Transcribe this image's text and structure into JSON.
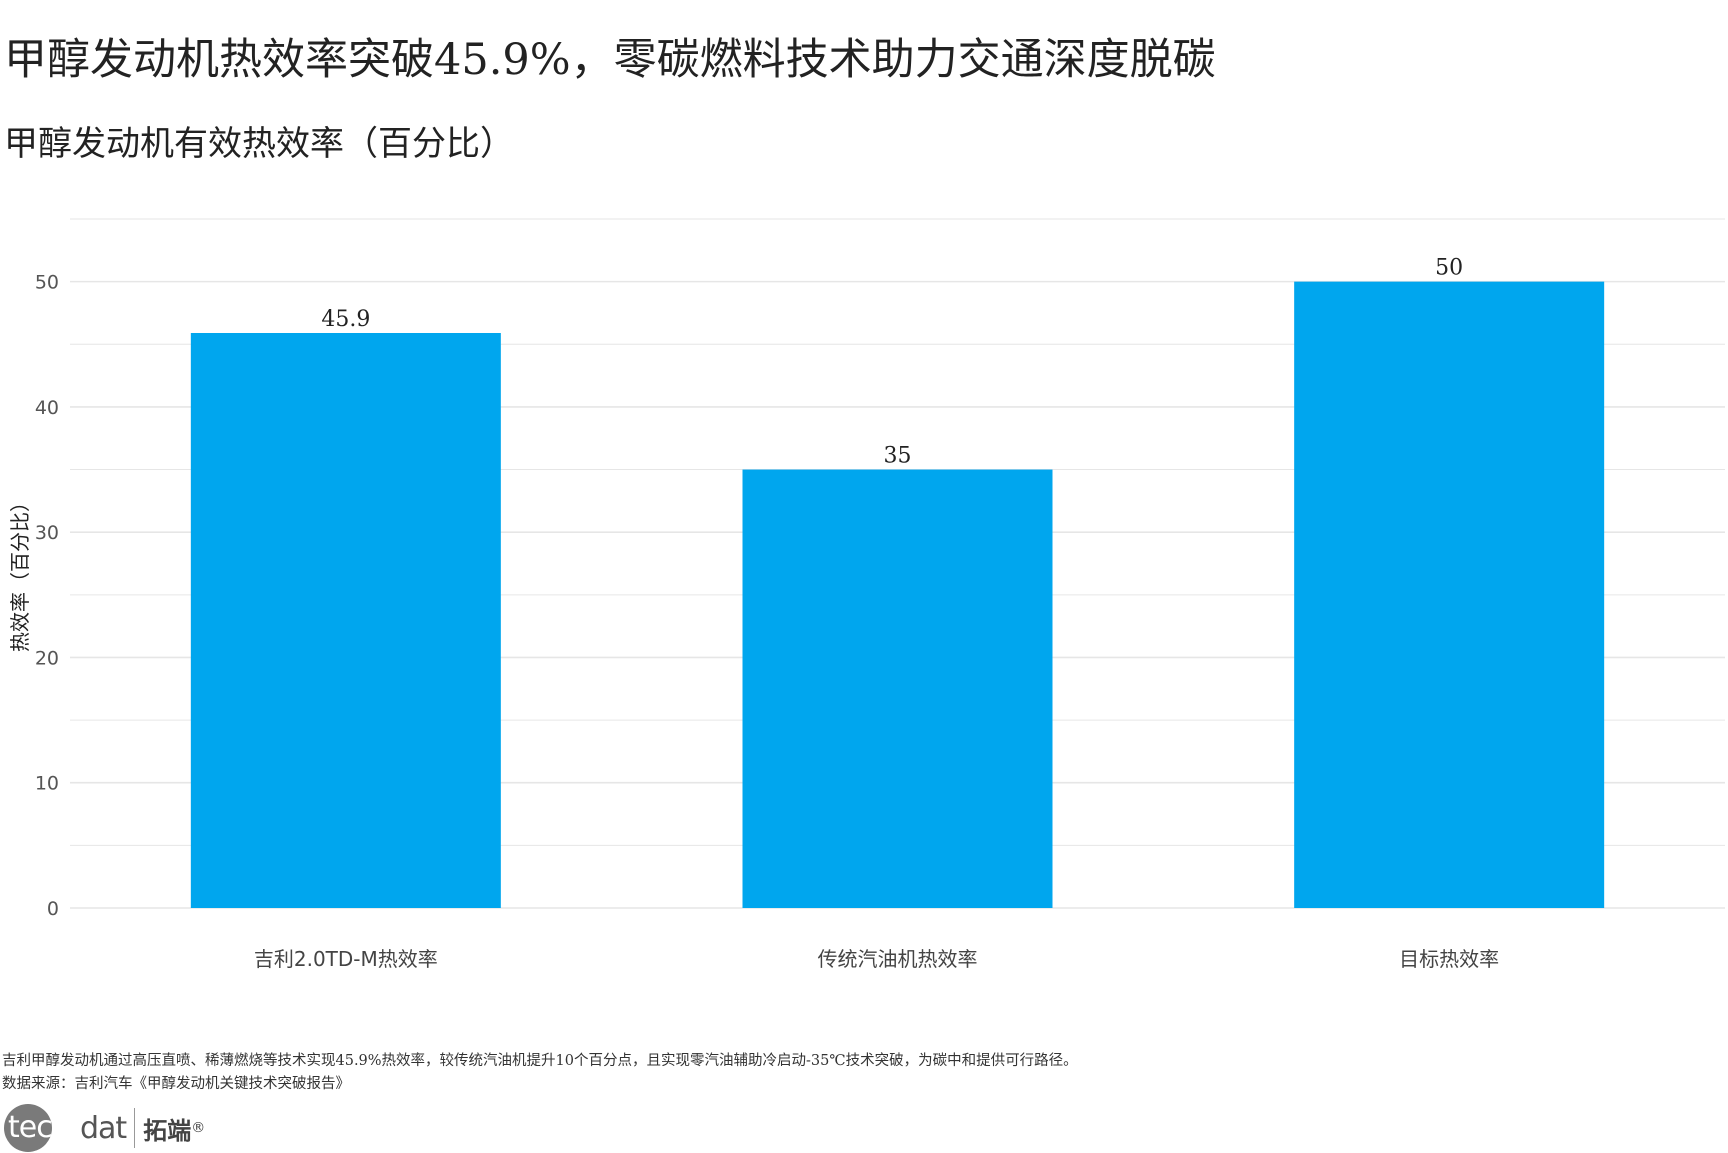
{
  "title": "甲醇发动机热效率突破45.9%，零碳燃料技术助力交通深度脱碳",
  "subtitle": "甲醇发动机有效热效率（百分比）",
  "note": "吉利甲醇发动机通过高压直喷、稀薄燃烧等技术实现45.9%热效率，较传统汽油机提升10个百分点，且实现零汽油辅助冷启动-35℃技术突破，为碳中和提供可行路径。",
  "source": "数据来源：吉利汽车《甲醇发动机关键技术突破报告》",
  "logo": {
    "brand": "tecdat",
    "brand_circle": "tec",
    "brand_rest": "dat",
    "cn": "拓端",
    "reg": "®"
  },
  "chart_data": {
    "type": "bar",
    "categories": [
      "吉利2.0TD-M热效率",
      "传统汽油机热效率",
      "目标热效率"
    ],
    "values": [
      45.9,
      35,
      50
    ],
    "value_labels": [
      "45.9",
      "35",
      "50"
    ],
    "ylabel": "热效率（百分比）",
    "xlabel": "",
    "ylim": [
      0,
      55
    ],
    "yticks": [
      0,
      10,
      20,
      30,
      40,
      50
    ],
    "grid": true,
    "bar_color": "#00a6ee",
    "grid_color": "#e6e6e6"
  }
}
